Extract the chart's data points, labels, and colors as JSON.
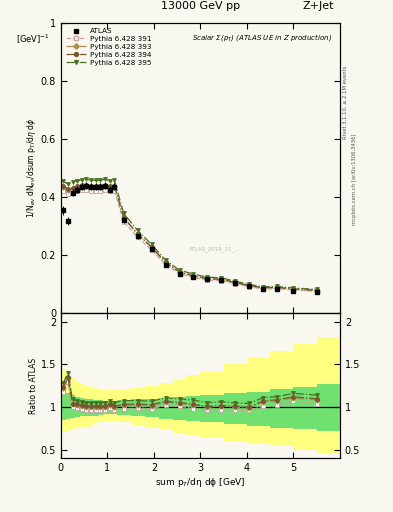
{
  "title_left": "13000 GeV pp",
  "title_right": "Z+Jet",
  "plot_title": "Scalar Σ(p$_T$) (ATLAS UE in Z production)",
  "ylabel_main": "1/N$_{ev}$ dN$_{ev}$/dsum p$_T$/dη dϕ",
  "ylabel_main2": "[GeV]$^{-1}$",
  "ylabel_ratio": "Ratio to ATLAS",
  "xlabel": "sum p$_T$/dη dϕ [GeV]",
  "right_label1": "Rivet 3.1.10, ≥ 2.1M events",
  "right_label2": "mcplots.cern.ch [arXiv:1306.3436]",
  "watermark": "ATLAS_2019_11_...",
  "xlim": [
    0,
    6
  ],
  "ylim_main": [
    0.0,
    1.0
  ],
  "ylim_ratio": [
    0.4,
    2.1
  ],
  "yticks_main": [
    0.0,
    0.2,
    0.4,
    0.6,
    0.8,
    1.0
  ],
  "yticks_ratio": [
    0.5,
    1.0,
    1.5,
    2.0
  ],
  "xticks": [
    0,
    1,
    2,
    3,
    4,
    5
  ],
  "data_x": [
    0.05,
    0.15,
    0.25,
    0.35,
    0.45,
    0.55,
    0.65,
    0.75,
    0.85,
    0.95,
    1.05,
    1.15,
    1.35,
    1.65,
    1.95,
    2.25,
    2.55,
    2.85,
    3.15,
    3.45,
    3.75,
    4.05,
    4.35,
    4.65,
    5.0,
    5.5
  ],
  "data_y": [
    0.355,
    0.318,
    0.415,
    0.425,
    0.435,
    0.44,
    0.435,
    0.435,
    0.435,
    0.44,
    0.425,
    0.435,
    0.32,
    0.265,
    0.222,
    0.165,
    0.135,
    0.125,
    0.118,
    0.115,
    0.105,
    0.095,
    0.082,
    0.082,
    0.075,
    0.072
  ],
  "data_yerr": [
    0.015,
    0.015,
    0.012,
    0.012,
    0.012,
    0.012,
    0.012,
    0.012,
    0.012,
    0.012,
    0.012,
    0.012,
    0.01,
    0.009,
    0.008,
    0.007,
    0.006,
    0.006,
    0.005,
    0.005,
    0.005,
    0.004,
    0.004,
    0.004,
    0.003,
    0.003
  ],
  "mc_x": [
    0.05,
    0.15,
    0.25,
    0.35,
    0.45,
    0.55,
    0.65,
    0.75,
    0.85,
    0.95,
    1.05,
    1.15,
    1.35,
    1.65,
    1.95,
    2.25,
    2.55,
    2.85,
    3.15,
    3.45,
    3.75,
    4.05,
    4.35,
    4.65,
    5.0,
    5.5
  ],
  "mc391_y": [
    0.42,
    0.41,
    0.415,
    0.42,
    0.425,
    0.425,
    0.422,
    0.422,
    0.422,
    0.425,
    0.42,
    0.422,
    0.315,
    0.262,
    0.218,
    0.168,
    0.136,
    0.123,
    0.113,
    0.112,
    0.101,
    0.091,
    0.083,
    0.084,
    0.08,
    0.075
  ],
  "mc393_y": [
    0.435,
    0.425,
    0.43,
    0.435,
    0.44,
    0.44,
    0.437,
    0.437,
    0.437,
    0.44,
    0.435,
    0.437,
    0.328,
    0.272,
    0.226,
    0.174,
    0.141,
    0.128,
    0.118,
    0.116,
    0.105,
    0.094,
    0.087,
    0.088,
    0.083,
    0.078
  ],
  "mc394_y": [
    0.438,
    0.428,
    0.433,
    0.438,
    0.443,
    0.443,
    0.44,
    0.44,
    0.44,
    0.443,
    0.438,
    0.44,
    0.33,
    0.274,
    0.228,
    0.176,
    0.142,
    0.129,
    0.119,
    0.117,
    0.106,
    0.095,
    0.088,
    0.089,
    0.084,
    0.079
  ],
  "mc395_y": [
    0.455,
    0.445,
    0.452,
    0.456,
    0.46,
    0.462,
    0.458,
    0.458,
    0.458,
    0.462,
    0.456,
    0.458,
    0.344,
    0.285,
    0.237,
    0.183,
    0.148,
    0.135,
    0.124,
    0.122,
    0.11,
    0.099,
    0.091,
    0.092,
    0.087,
    0.082
  ],
  "ratio391_y": [
    1.18,
    1.29,
    1.0,
    0.99,
    0.98,
    0.97,
    0.97,
    0.97,
    0.97,
    0.97,
    0.99,
    0.97,
    0.98,
    0.99,
    0.98,
    1.02,
    1.01,
    0.98,
    0.96,
    0.97,
    0.96,
    0.96,
    1.01,
    1.02,
    1.07,
    1.04
  ],
  "ratio393_y": [
    1.22,
    1.34,
    1.04,
    1.02,
    1.01,
    1.0,
    1.0,
    1.0,
    1.0,
    1.0,
    1.02,
    1.0,
    1.025,
    1.026,
    1.018,
    1.055,
    1.044,
    1.024,
    1.0,
    1.009,
    1.0,
    0.989,
    1.061,
    1.073,
    1.107,
    1.083
  ],
  "ratio394_y": [
    1.23,
    1.35,
    1.04,
    1.03,
    1.02,
    1.01,
    1.01,
    1.01,
    1.01,
    1.01,
    1.03,
    1.01,
    1.031,
    1.034,
    1.027,
    1.067,
    1.052,
    1.032,
    1.008,
    1.017,
    1.01,
    1.0,
    1.073,
    1.085,
    1.12,
    1.097
  ],
  "ratio395_y": [
    1.28,
    1.4,
    1.09,
    1.07,
    1.06,
    1.05,
    1.053,
    1.053,
    1.053,
    1.05,
    1.073,
    1.053,
    1.075,
    1.075,
    1.068,
    1.109,
    1.096,
    1.08,
    1.051,
    1.061,
    1.048,
    1.042,
    1.11,
    1.122,
    1.16,
    1.14
  ],
  "yellow_band_x": [
    0.0,
    0.1,
    0.2,
    0.3,
    0.4,
    0.5,
    0.6,
    0.7,
    0.8,
    0.9,
    1.0,
    1.2,
    1.5,
    1.8,
    2.1,
    2.4,
    2.7,
    3.0,
    3.5,
    4.0,
    4.5,
    5.0,
    5.5,
    6.0
  ],
  "yellow_lo": [
    0.72,
    0.72,
    0.74,
    0.76,
    0.77,
    0.77,
    0.78,
    0.8,
    0.82,
    0.83,
    0.83,
    0.82,
    0.79,
    0.76,
    0.73,
    0.7,
    0.67,
    0.64,
    0.6,
    0.57,
    0.54,
    0.5,
    0.46,
    0.44
  ],
  "yellow_hi": [
    1.45,
    1.4,
    1.35,
    1.3,
    1.27,
    1.25,
    1.23,
    1.22,
    1.21,
    1.2,
    1.2,
    1.2,
    1.22,
    1.25,
    1.28,
    1.32,
    1.37,
    1.42,
    1.5,
    1.58,
    1.66,
    1.74,
    1.82,
    1.88
  ],
  "green_lo": [
    0.85,
    0.86,
    0.87,
    0.88,
    0.89,
    0.89,
    0.895,
    0.9,
    0.91,
    0.915,
    0.915,
    0.91,
    0.895,
    0.88,
    0.865,
    0.85,
    0.835,
    0.82,
    0.8,
    0.78,
    0.76,
    0.74,
    0.72,
    0.7
  ],
  "green_hi": [
    1.2,
    1.17,
    1.14,
    1.12,
    1.11,
    1.1,
    1.09,
    1.085,
    1.08,
    1.075,
    1.075,
    1.08,
    1.09,
    1.1,
    1.11,
    1.12,
    1.13,
    1.14,
    1.16,
    1.18,
    1.21,
    1.24,
    1.27,
    1.3
  ],
  "color_391": "#c8a0a0",
  "color_393": "#a89050",
  "color_394": "#7a5530",
  "color_395": "#4a7020",
  "color_data": "black",
  "color_yellow": "#ffff80",
  "color_green": "#70e070",
  "background_color": "#f8f8f0"
}
